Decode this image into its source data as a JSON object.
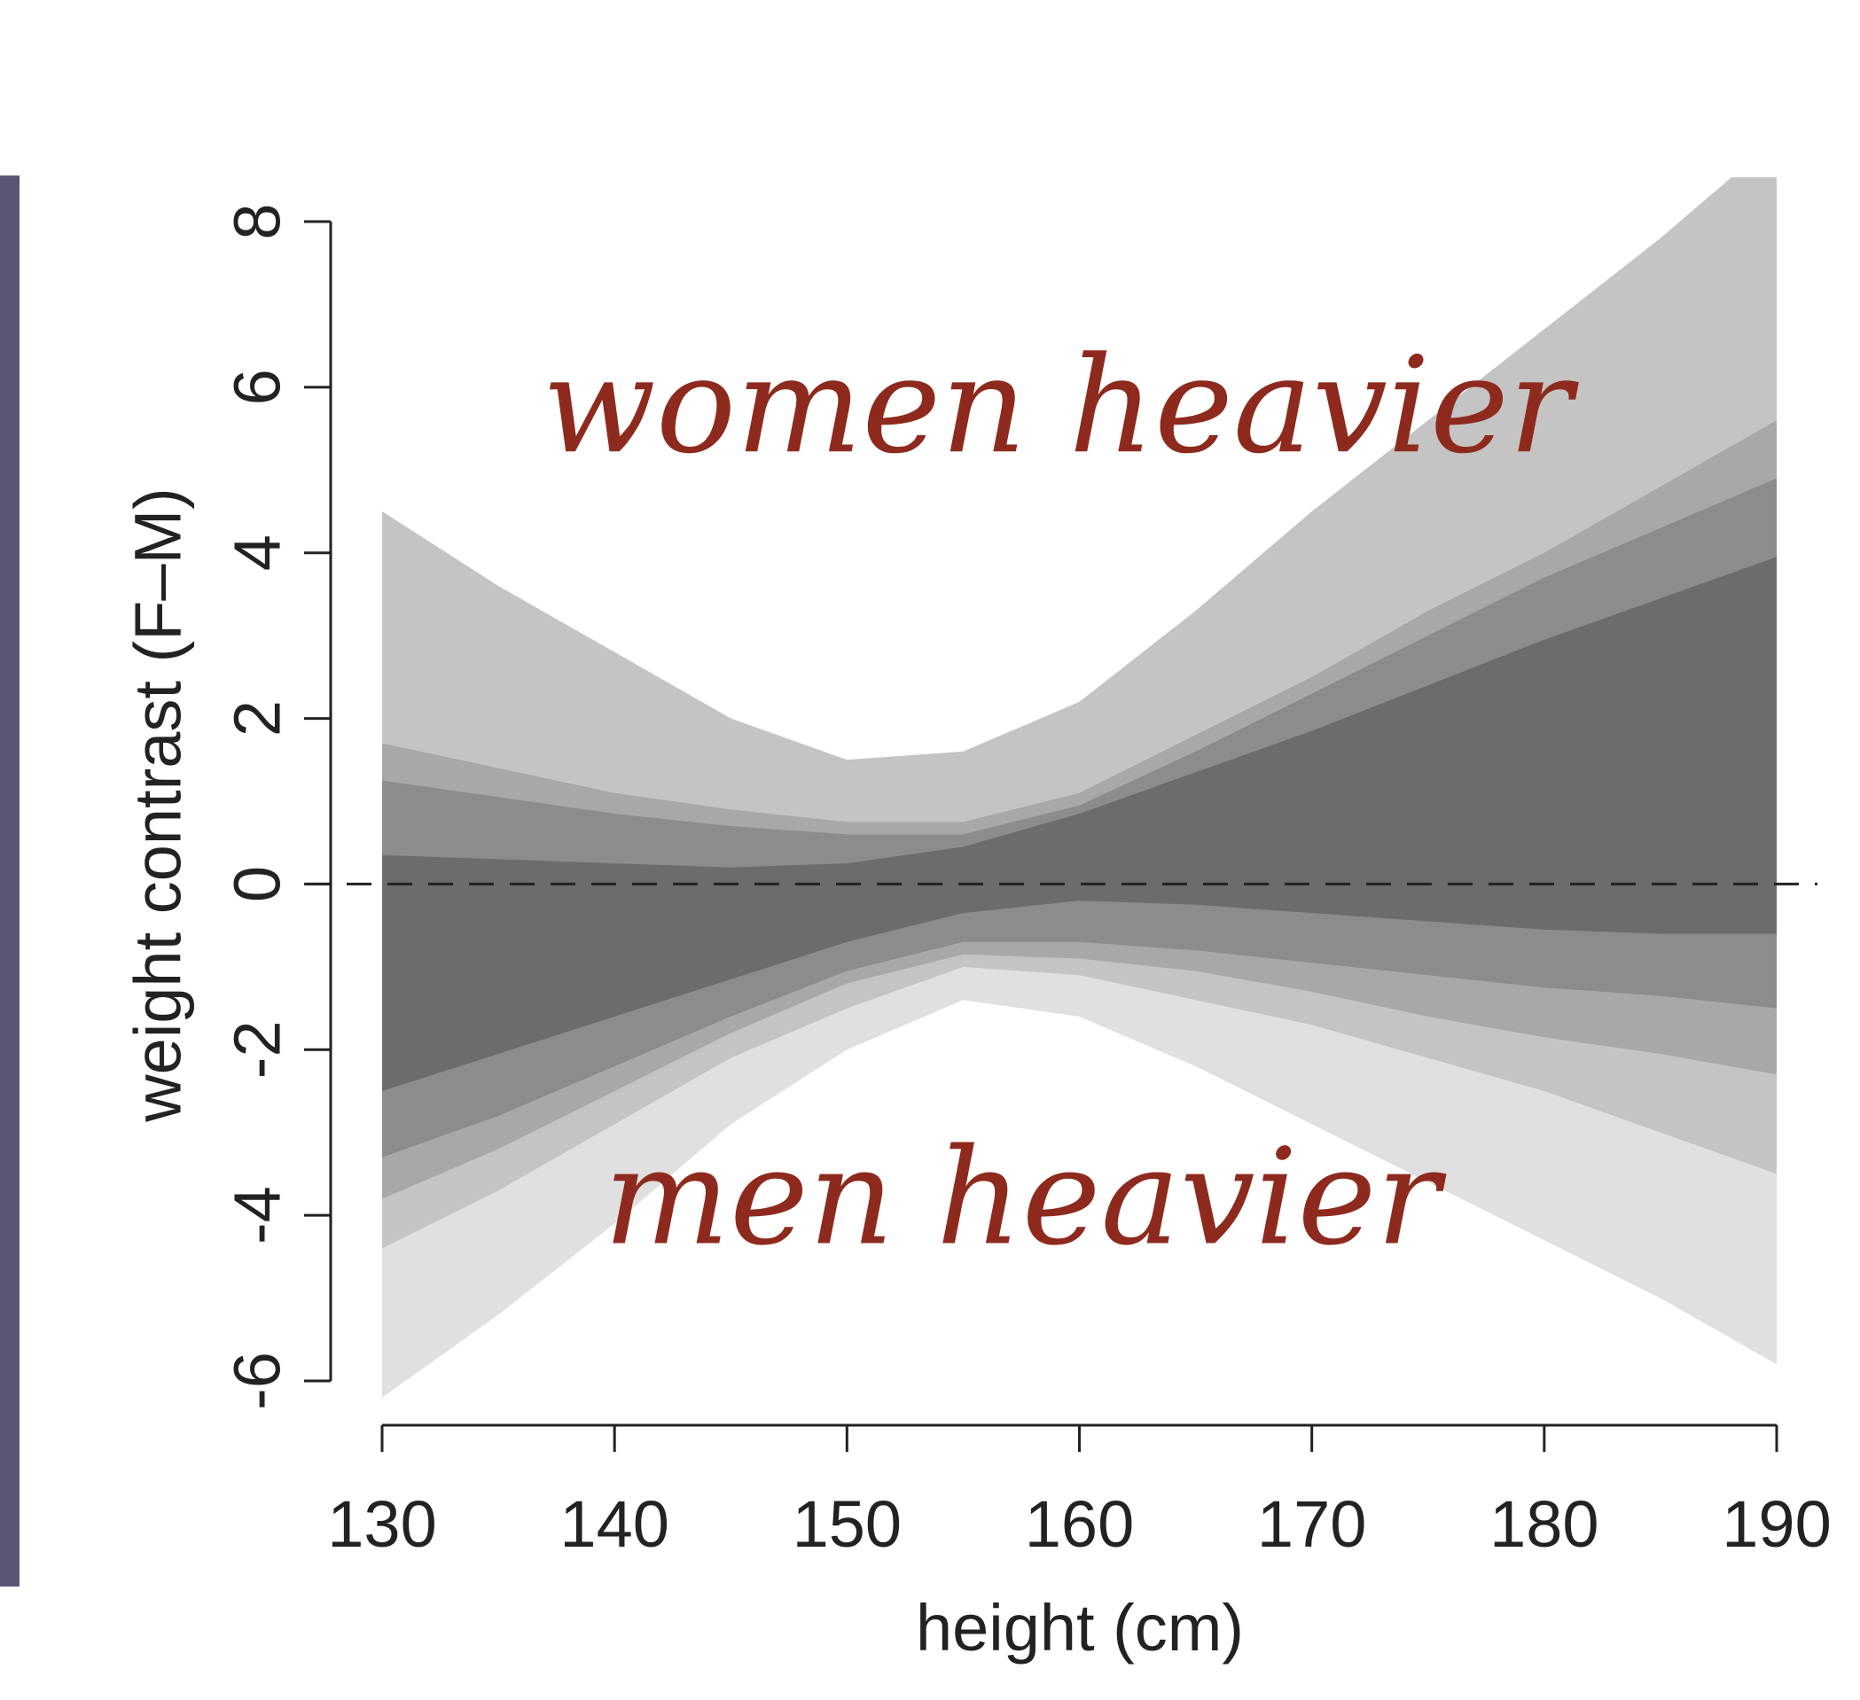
{
  "chart_data": {
    "type": "area",
    "xlabel": "height (cm)",
    "ylabel": "weight contrast (F–M)",
    "xlim": [
      130,
      190
    ],
    "ylim": [
      -6,
      8
    ],
    "xticks": [
      130,
      140,
      150,
      160,
      170,
      180,
      190
    ],
    "yticks": [
      -6,
      -4,
      -2,
      0,
      2,
      4,
      6,
      8
    ],
    "reference_line": {
      "y": 0,
      "style": "dashed"
    },
    "annotations": [
      {
        "text": "women heavier",
        "x": 160,
        "y": 5.6
      },
      {
        "text": "men heavier",
        "x": 160,
        "y": -3.8
      }
    ],
    "x": [
      130,
      135,
      140,
      145,
      150,
      155,
      160,
      165,
      170,
      175,
      180,
      185,
      190
    ],
    "bands": [
      {
        "color": "#e0e0e0",
        "lower": [
          -6.2,
          -5.2,
          -4.1,
          -2.9,
          -2.0,
          -1.4,
          -1.6,
          -2.2,
          -2.9,
          -3.6,
          -4.3,
          -5.0,
          -5.8
        ],
        "upper": [
          4.5,
          3.6,
          2.8,
          2.0,
          1.5,
          1.6,
          2.2,
          3.3,
          4.5,
          5.6,
          6.7,
          7.8,
          9.0
        ]
      },
      {
        "color": "#c4c4c4",
        "lower": [
          -4.4,
          -3.7,
          -2.9,
          -2.1,
          -1.5,
          -1.0,
          -1.1,
          -1.4,
          -1.7,
          -2.1,
          -2.5,
          -3.0,
          -3.5
        ]
      },
      {
        "color": "#a8a8a8",
        "upper": [
          1.7,
          1.4,
          1.1,
          0.9,
          0.75,
          0.75,
          1.1,
          1.8,
          2.5,
          3.3,
          4.0,
          4.8,
          5.6
        ],
        "lower": [
          -3.8,
          -3.2,
          -2.5,
          -1.8,
          -1.2,
          -0.85,
          -0.9,
          -1.05,
          -1.3,
          -1.6,
          -1.85,
          -2.05,
          -2.3
        ]
      },
      {
        "color": "#8c8c8c",
        "upper": [
          1.25,
          1.05,
          0.85,
          0.7,
          0.6,
          0.6,
          0.95,
          1.6,
          2.3,
          3.0,
          3.7,
          4.3,
          4.9
        ],
        "lower": [
          -3.3,
          -2.8,
          -2.2,
          -1.6,
          -1.05,
          -0.7,
          -0.7,
          -0.8,
          -0.95,
          -1.1,
          -1.25,
          -1.35,
          -1.5
        ]
      },
      {
        "color": "#6c6c6c",
        "upper": [
          0.35,
          0.3,
          0.25,
          0.2,
          0.25,
          0.45,
          0.85,
          1.35,
          1.85,
          2.4,
          2.95,
          3.45,
          3.95
        ],
        "lower": [
          -2.5,
          -2.05,
          -1.6,
          -1.15,
          -0.7,
          -0.35,
          -0.2,
          -0.25,
          -0.35,
          -0.45,
          -0.55,
          -0.6,
          -0.6
        ]
      }
    ]
  }
}
